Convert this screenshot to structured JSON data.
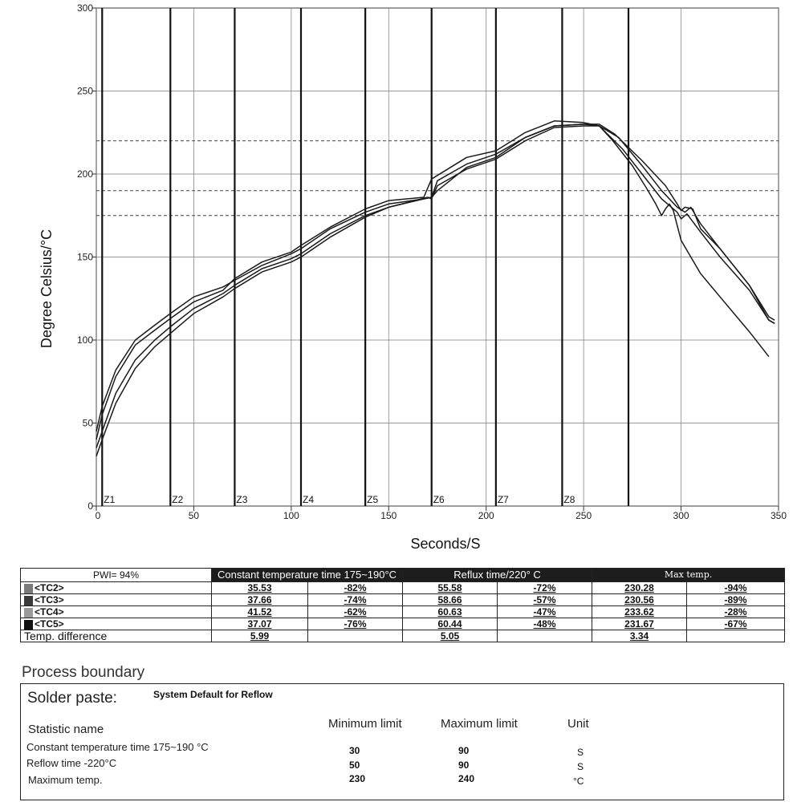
{
  "chart_data": {
    "type": "line",
    "xlabel": "Seconds/S",
    "ylabel": "Degree Celsius/°C",
    "xlim": [
      0,
      350
    ],
    "ylim": [
      0,
      300
    ],
    "x_ticks": [
      "0",
      "50",
      "100",
      "150",
      "200",
      "250",
      "300",
      "350"
    ],
    "y_ticks": [
      "0",
      "50",
      "100",
      "150",
      "200",
      "250",
      "300"
    ],
    "zones": [
      {
        "label": "Z1",
        "x": 3
      },
      {
        "label": "Z2",
        "x": 38
      },
      {
        "label": "Z3",
        "x": 71
      },
      {
        "label": "Z4",
        "x": 105
      },
      {
        "label": "Z5",
        "x": 138
      },
      {
        "label": "Z6",
        "x": 172
      },
      {
        "label": "Z7",
        "x": 205
      },
      {
        "label": "Z8",
        "x": 239
      },
      {
        "label": "",
        "x": 273
      }
    ],
    "reference_lines": [
      175,
      190,
      220
    ],
    "series": [
      {
        "name": "TC2",
        "points": [
          [
            0,
            30
          ],
          [
            3,
            40
          ],
          [
            10,
            62
          ],
          [
            20,
            83
          ],
          [
            30,
            96
          ],
          [
            38,
            104
          ],
          [
            50,
            116
          ],
          [
            65,
            126
          ],
          [
            71,
            131
          ],
          [
            85,
            141
          ],
          [
            100,
            147
          ],
          [
            105,
            150
          ],
          [
            120,
            162
          ],
          [
            138,
            174
          ],
          [
            150,
            180
          ],
          [
            170,
            186
          ],
          [
            172,
            185
          ],
          [
            175,
            193
          ],
          [
            190,
            203
          ],
          [
            205,
            209
          ],
          [
            220,
            220
          ],
          [
            235,
            228
          ],
          [
            250,
            229
          ],
          [
            258,
            229
          ],
          [
            270,
            215
          ],
          [
            280,
            200
          ],
          [
            290,
            185
          ],
          [
            298,
            177
          ],
          [
            300,
            173
          ],
          [
            303,
            176
          ],
          [
            310,
            165
          ],
          [
            320,
            150
          ],
          [
            335,
            130
          ],
          [
            345,
            112
          ],
          [
            348,
            110
          ]
        ]
      },
      {
        "name": "TC3",
        "points": [
          [
            0,
            35
          ],
          [
            3,
            45
          ],
          [
            10,
            68
          ],
          [
            20,
            88
          ],
          [
            30,
            100
          ],
          [
            38,
            108
          ],
          [
            50,
            119
          ],
          [
            65,
            128
          ],
          [
            71,
            133
          ],
          [
            85,
            143
          ],
          [
            100,
            149
          ],
          [
            105,
            152
          ],
          [
            120,
            164
          ],
          [
            138,
            175
          ],
          [
            150,
            180
          ],
          [
            168,
            185
          ],
          [
            172,
            186
          ],
          [
            175,
            196
          ],
          [
            190,
            206
          ],
          [
            205,
            212
          ],
          [
            220,
            222
          ],
          [
            235,
            229
          ],
          [
            250,
            230
          ],
          [
            258,
            229
          ],
          [
            268,
            222
          ],
          [
            280,
            205
          ],
          [
            290,
            190
          ],
          [
            298,
            180
          ],
          [
            302,
            177
          ],
          [
            305,
            180
          ],
          [
            310,
            170
          ],
          [
            320,
            155
          ],
          [
            335,
            133
          ],
          [
            345,
            114
          ],
          [
            348,
            112
          ]
        ]
      },
      {
        "name": "TC4",
        "points": [
          [
            0,
            40
          ],
          [
            3,
            55
          ],
          [
            10,
            78
          ],
          [
            20,
            97
          ],
          [
            30,
            106
          ],
          [
            38,
            113
          ],
          [
            50,
            123
          ],
          [
            65,
            130
          ],
          [
            71,
            137
          ],
          [
            85,
            147
          ],
          [
            100,
            153
          ],
          [
            105,
            157
          ],
          [
            120,
            168
          ],
          [
            138,
            179
          ],
          [
            150,
            184
          ],
          [
            168,
            186
          ],
          [
            172,
            197
          ],
          [
            190,
            210
          ],
          [
            205,
            214
          ],
          [
            220,
            225
          ],
          [
            235,
            232
          ],
          [
            250,
            231
          ],
          [
            258,
            229
          ],
          [
            265,
            220
          ],
          [
            275,
            205
          ],
          [
            282,
            192
          ],
          [
            287,
            182
          ],
          [
            290,
            175
          ],
          [
            292,
            179
          ],
          [
            294,
            182
          ],
          [
            296,
            178
          ],
          [
            300,
            160
          ],
          [
            310,
            140
          ],
          [
            320,
            126
          ],
          [
            335,
            105
          ],
          [
            345,
            90
          ]
        ]
      },
      {
        "name": "TC5",
        "points": [
          [
            0,
            45
          ],
          [
            3,
            60
          ],
          [
            10,
            82
          ],
          [
            20,
            100
          ],
          [
            30,
            109
          ],
          [
            38,
            116
          ],
          [
            50,
            126
          ],
          [
            65,
            132
          ],
          [
            71,
            136
          ],
          [
            85,
            145
          ],
          [
            100,
            152
          ],
          [
            105,
            155
          ],
          [
            120,
            167
          ],
          [
            138,
            177
          ],
          [
            150,
            182
          ],
          [
            168,
            185
          ],
          [
            172,
            186
          ],
          [
            175,
            190
          ],
          [
            190,
            204
          ],
          [
            205,
            210
          ],
          [
            220,
            222
          ],
          [
            235,
            229
          ],
          [
            250,
            230
          ],
          [
            258,
            230
          ],
          [
            266,
            224
          ],
          [
            280,
            208
          ],
          [
            292,
            193
          ],
          [
            298,
            182
          ],
          [
            300,
            178
          ],
          [
            302,
            180
          ],
          [
            306,
            179
          ],
          [
            310,
            167
          ],
          [
            320,
            155
          ],
          [
            335,
            133
          ],
          [
            345,
            112
          ],
          [
            348,
            110
          ]
        ]
      }
    ]
  },
  "table": {
    "pwi": "PWI= 94%",
    "header_constant": "Constant temperature time 175~190°C",
    "header_reflux": "Reflux time/220° C",
    "header_max": "Max temp.",
    "rows": [
      {
        "label": "<TC2>",
        "color": "#7a7a7a",
        "c1": "35.53",
        "c2": "-82%",
        "c3": "55.58",
        "c4": "-72%",
        "c5": "230.28",
        "c6": "-94%"
      },
      {
        "label": "<TC3>",
        "color": "#3a3a3a",
        "c1": "37.66",
        "c2": "-74%",
        "c3": "58.66",
        "c4": "-57%",
        "c5": "230.56",
        "c6": "-89%"
      },
      {
        "label": "<TC4>",
        "color": "#9a9a9a",
        "c1": "41.52",
        "c2": "-62%",
        "c3": "60.63",
        "c4": "-47%",
        "c5": "233.62",
        "c6": "-28%"
      },
      {
        "label": "<TC5>",
        "color": "#111111",
        "c1": "37.07",
        "c2": "-76%",
        "c3": "60.44",
        "c4": "-48%",
        "c5": "231.67",
        "c6": "-67%"
      }
    ],
    "diff": {
      "label": "Temp. difference",
      "c1": "5.99",
      "c3": "5.05",
      "c5": "3.34"
    }
  },
  "process": {
    "title": "Process boundary",
    "solder_label": "Solder paste:",
    "solder_value": "System Default for Reflow",
    "col_statistic": "Statistic name",
    "col_min": "Minimum limit",
    "col_max": "Maximum limit",
    "col_unit": "Unit",
    "rows": [
      {
        "name": "Constant temperature time 175~190 °C",
        "min": "30",
        "max": "90",
        "unit": "S"
      },
      {
        "name": "Reflow time -220°C",
        "min": "50",
        "max": "90",
        "unit": "S"
      },
      {
        "name": "Maximum temp.",
        "min": "230",
        "max": "240",
        "unit": "°C"
      }
    ]
  }
}
